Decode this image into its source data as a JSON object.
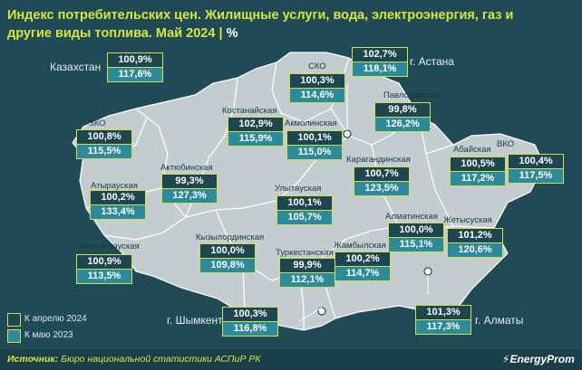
{
  "title": {
    "text": "Индекс потребительских цен. Жилищные услуги, вода, электроэнергия, газ и другие виды топлива. Май 2024",
    "separator": "|",
    "unit": "%"
  },
  "kazakhstan": {
    "label": "Казахстан",
    "apr": "100,9%",
    "may": "117,6%"
  },
  "regions": {
    "sko": {
      "label": "СКО",
      "apr": "100,3%",
      "may": "114,6%"
    },
    "astana": {
      "label": "г. Астана",
      "apr": "102,7%",
      "may": "118,1%"
    },
    "pavlodar": {
      "label": "Павлодарская",
      "apr": "99,8%",
      "may": "126,2%"
    },
    "zko": {
      "label": "ЗКО",
      "apr": "100,8%",
      "may": "115,5%"
    },
    "kostanay": {
      "label": "Костанайская",
      "apr": "102,9%",
      "may": "115,9%"
    },
    "akmola": {
      "label": "Акмолинская",
      "apr": "100,1%",
      "may": "115,0%"
    },
    "abay": {
      "label": "Абайская",
      "apr": "100,5%",
      "may": "117,2%"
    },
    "vko": {
      "label": "ВКО",
      "apr": "100,4%",
      "may": "117,5%"
    },
    "aktobe": {
      "label": "Актюбинская",
      "apr": "99,3%",
      "may": "127,3%"
    },
    "karaganda": {
      "label": "Карагандинская",
      "apr": "100,7%",
      "may": "123,5%"
    },
    "atyrau": {
      "label": "Атырауская",
      "apr": "100,2%",
      "may": "133,4%"
    },
    "ulytau": {
      "label": "Улытауская",
      "apr": "100,1%",
      "may": "105,7%"
    },
    "almaty_reg": {
      "label": "Алматинская",
      "apr": "100,0%",
      "may": "115,1%"
    },
    "zhetysu": {
      "label": "Жетысуская",
      "apr": "101,2%",
      "may": "120,6%"
    },
    "mangystau": {
      "label": "Мангистауская",
      "apr": "100,9%",
      "may": "113,5%"
    },
    "kyzylorda": {
      "label": "Кызылординская",
      "apr": "100,0%",
      "may": "109,8%"
    },
    "turkestan": {
      "label": "Туркестанская",
      "apr": "99,9%",
      "may": "112,1%"
    },
    "zhambyl": {
      "label": "Жамбылская",
      "apr": "100,2%",
      "may": "114,7%"
    },
    "shymkent": {
      "label": "г. Шымкент",
      "apr": "100,3%",
      "may": "116,8%"
    },
    "almaty": {
      "label": "г. Алматы",
      "apr": "101,3%",
      "may": "117,3%"
    }
  },
  "legend": {
    "apr_label": "К апрелю 2024",
    "may_label": "К маю 2023",
    "apr_color": "#1e4650",
    "may_color": "#2d8a9a"
  },
  "map_colors": {
    "land": "#c3cdd0",
    "border": "#ffffff",
    "background": "#1f4a56"
  },
  "source": {
    "prefix": "Источник:",
    "text": "Бюро национальной статистики АСПиР РК"
  },
  "logo": "EnergyProm"
}
